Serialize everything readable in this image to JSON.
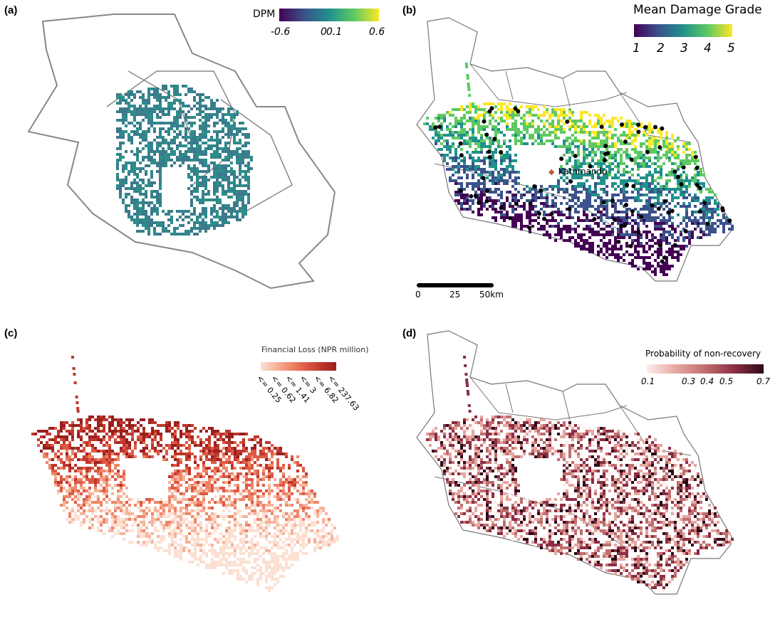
{
  "panels": {
    "a": {
      "label": "(a)",
      "legend_title": "DPM",
      "ticks": [
        "-0.6",
        "0",
        "0.1",
        "0.6"
      ],
      "colors": [
        "#440154",
        "#3b528b",
        "#21918c",
        "#5ec962",
        "#fde725"
      ]
    },
    "b": {
      "label": "(b)",
      "legend_title": "Mean Damage Grade",
      "ticks": [
        "1",
        "2",
        "3",
        "4",
        "5"
      ],
      "colors": [
        "#440154",
        "#3b528b",
        "#21918c",
        "#5ec962",
        "#fde725"
      ],
      "city": "Kathmandu",
      "city_color": "#c0583a",
      "scalebar": [
        "0",
        "25",
        "50km"
      ]
    },
    "c": {
      "label": "(c)",
      "legend_title": "Financial Loss (NPR million)",
      "ticks": [
        "<= 0.25",
        "<= 0.62",
        "<= 1.41",
        "<= 3",
        "<= 6.82",
        "<= 237.63"
      ],
      "colors": [
        "#fbe0d3",
        "#f6b49b",
        "#ee8668",
        "#de5a44",
        "#c0362c",
        "#99201f"
      ]
    },
    "d": {
      "label": "(d)",
      "legend_title": "Probability of non-recovery",
      "ticks": [
        "0.1",
        "0.3",
        "0.4",
        "0.5",
        "0.7"
      ],
      "colors": [
        "#fdeeee",
        "#e6a6a0",
        "#c06e6e",
        "#8a2e44",
        "#2e0a18"
      ]
    }
  }
}
